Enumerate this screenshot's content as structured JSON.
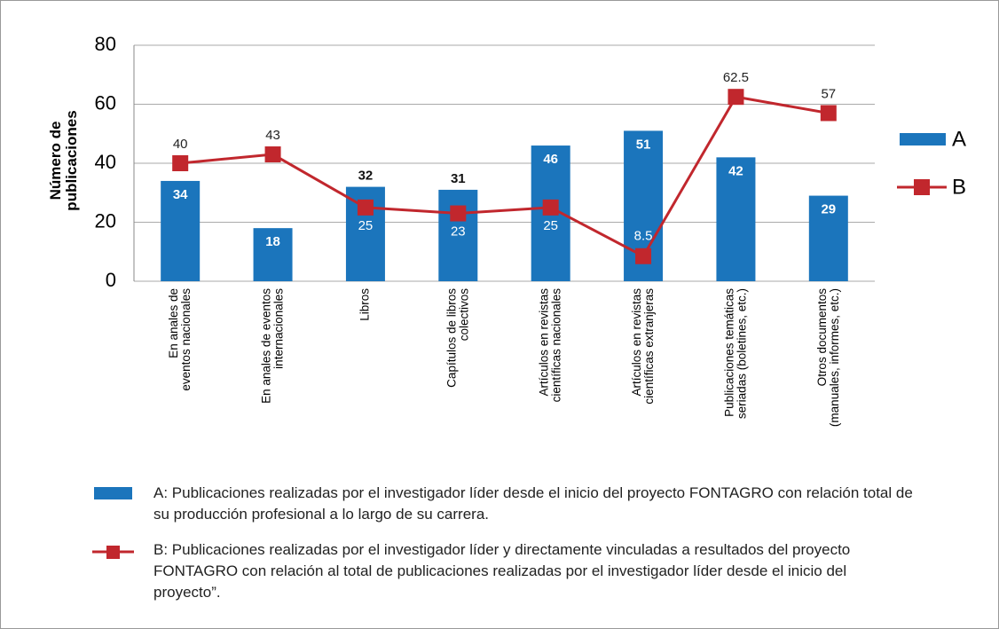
{
  "chart_data": {
    "type": "bar-line",
    "y_label": "Número de\npublicaciones",
    "categories": [
      "En anales de\neventos nacionales",
      "En anales de eventos\ninternacionales",
      "Libros",
      "Capítulos de libros\ncolectivos",
      "Artículos en revistas\ncientíficas nacionales",
      "Artículos en revistas\ncientíficas extranjeras",
      "Publicaciones temáticas\nseriadas (boletines, etc.)",
      "Otros documentos\n(manuales, informes, etc.)"
    ],
    "series": [
      {
        "name": "A",
        "type": "bar",
        "color": "#1b75bc",
        "values": [
          34,
          18,
          32,
          31,
          46,
          51,
          42,
          29
        ],
        "legend_text": "A: Publicaciones realizadas por el investigador líder desde el inicio del proyecto FONTAGRO con relación total de su producción profesional a lo largo de su carrera."
      },
      {
        "name": "B",
        "type": "line",
        "color": "#c1272d",
        "values": [
          40,
          43,
          25,
          23,
          25,
          8.5,
          62.5,
          57
        ],
        "legend_text": "B: Publicaciones realizadas por el investigador líder y directamente vinculadas a resultados del proyecto FONTAGRO con relación al total de publicaciones realizadas por el investigador líder desde el inicio del proyecto”."
      }
    ],
    "ylim": [
      0,
      80
    ],
    "yticks": [
      0,
      20,
      40,
      60,
      80
    ],
    "grid": true
  }
}
